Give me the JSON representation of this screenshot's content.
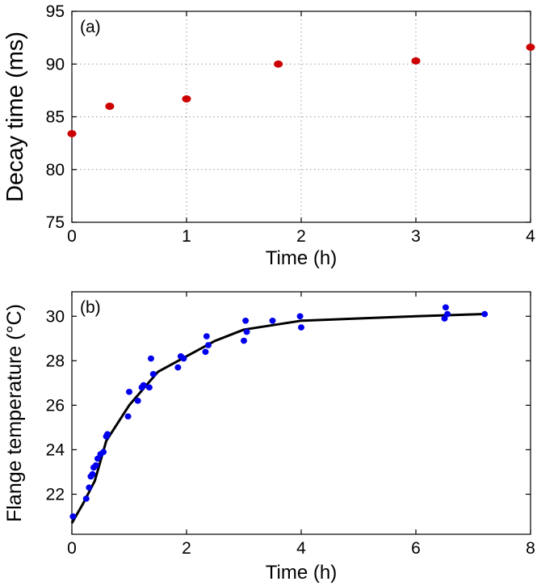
{
  "chart_data": [
    {
      "type": "scatter",
      "panel_label": "(a)",
      "xlabel": "Time (h)",
      "ylabel": "Decay time (ms)",
      "xlim": [
        0,
        4
      ],
      "ylim": [
        75,
        95
      ],
      "xticks": [
        0,
        1,
        2,
        3,
        4
      ],
      "yticks": [
        75,
        80,
        85,
        90,
        95
      ],
      "grid": true,
      "marker_color": "#cc0000",
      "points": [
        {
          "x": 0.0,
          "y": 83.4
        },
        {
          "x": 0.33,
          "y": 86.0
        },
        {
          "x": 1.0,
          "y": 86.7
        },
        {
          "x": 1.8,
          "y": 90.0
        },
        {
          "x": 3.0,
          "y": 90.3
        },
        {
          "x": 4.0,
          "y": 91.6
        }
      ]
    },
    {
      "type": "scatter",
      "panel_label": "(b)",
      "xlabel": "Time (h)",
      "ylabel": "Flange temperature (°C)",
      "xlim": [
        0,
        8
      ],
      "ylim": [
        20.2,
        31.1
      ],
      "xticks": [
        0,
        2,
        4,
        6,
        8
      ],
      "yticks": [
        22,
        24,
        26,
        28,
        30
      ],
      "grid": false,
      "marker_color": "#0000ee",
      "line_color": "#000000",
      "points": [
        {
          "x": 0.02,
          "y": 21.0
        },
        {
          "x": 0.25,
          "y": 21.8
        },
        {
          "x": 0.3,
          "y": 22.3
        },
        {
          "x": 0.33,
          "y": 22.8
        },
        {
          "x": 0.36,
          "y": 22.9
        },
        {
          "x": 0.38,
          "y": 23.2
        },
        {
          "x": 0.42,
          "y": 23.3
        },
        {
          "x": 0.45,
          "y": 23.6
        },
        {
          "x": 0.5,
          "y": 23.8
        },
        {
          "x": 0.55,
          "y": 23.9
        },
        {
          "x": 0.6,
          "y": 24.6
        },
        {
          "x": 0.62,
          "y": 24.7
        },
        {
          "x": 0.98,
          "y": 25.5
        },
        {
          "x": 1.0,
          "y": 26.6
        },
        {
          "x": 1.15,
          "y": 26.2
        },
        {
          "x": 1.22,
          "y": 26.8
        },
        {
          "x": 1.25,
          "y": 26.9
        },
        {
          "x": 1.35,
          "y": 26.8
        },
        {
          "x": 1.38,
          "y": 28.1
        },
        {
          "x": 1.42,
          "y": 27.4
        },
        {
          "x": 1.85,
          "y": 27.7
        },
        {
          "x": 1.9,
          "y": 28.2
        },
        {
          "x": 1.95,
          "y": 28.1
        },
        {
          "x": 2.33,
          "y": 28.4
        },
        {
          "x": 2.35,
          "y": 29.1
        },
        {
          "x": 2.38,
          "y": 28.7
        },
        {
          "x": 3.0,
          "y": 28.9
        },
        {
          "x": 3.03,
          "y": 29.8
        },
        {
          "x": 3.05,
          "y": 29.3
        },
        {
          "x": 3.5,
          "y": 29.8
        },
        {
          "x": 3.98,
          "y": 30.0
        },
        {
          "x": 4.0,
          "y": 29.5
        },
        {
          "x": 6.5,
          "y": 29.9
        },
        {
          "x": 6.52,
          "y": 30.4
        },
        {
          "x": 6.55,
          "y": 30.1
        },
        {
          "x": 7.2,
          "y": 30.1
        }
      ],
      "fit_curve": [
        {
          "x": 0.0,
          "y": 20.7
        },
        {
          "x": 0.2,
          "y": 21.6
        },
        {
          "x": 0.4,
          "y": 22.6
        },
        {
          "x": 0.6,
          "y": 24.4
        },
        {
          "x": 0.8,
          "y": 25.2
        },
        {
          "x": 1.0,
          "y": 26.0
        },
        {
          "x": 1.2,
          "y": 26.6
        },
        {
          "x": 1.5,
          "y": 27.5
        },
        {
          "x": 2.0,
          "y": 28.2
        },
        {
          "x": 2.5,
          "y": 28.9
        },
        {
          "x": 3.0,
          "y": 29.4
        },
        {
          "x": 3.5,
          "y": 29.6
        },
        {
          "x": 4.0,
          "y": 29.8
        },
        {
          "x": 5.0,
          "y": 29.9
        },
        {
          "x": 6.0,
          "y": 30.0
        },
        {
          "x": 7.2,
          "y": 30.1
        }
      ]
    }
  ]
}
